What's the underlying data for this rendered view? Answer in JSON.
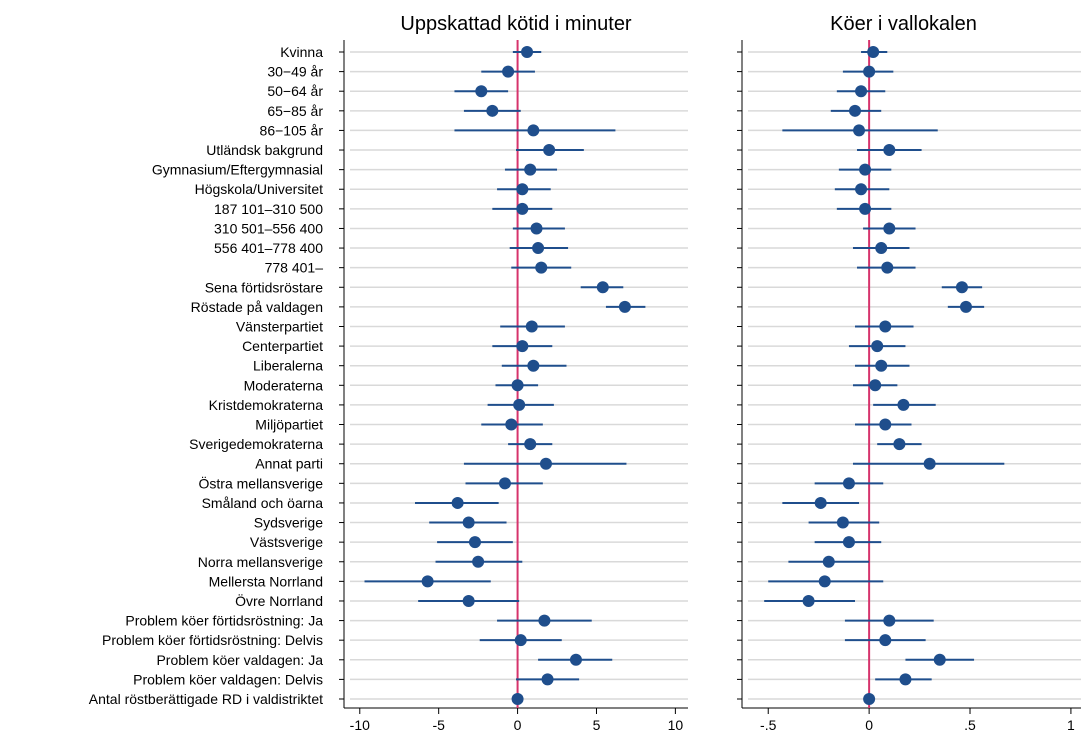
{
  "chart_data": {
    "type": "scatter",
    "subtype": "coefficient-plot",
    "marker_color": "#1f4e8c",
    "ci_color": "#1f4e8c",
    "zero_line_color": "#d6336c",
    "grid": true,
    "categories": [
      "Kvinna",
      "30−49 år",
      "50−64 år",
      "65−85 år",
      "86−105 år",
      "Utländsk bakgrund",
      "Gymnasium/Eftergymnasial",
      "Högskola/Universitet",
      "187 101–310 500",
      "310 501–556 400",
      "556 401–778 400",
      "778 401–",
      "Sena förtidsröstare",
      "Röstade på valdagen",
      "Vänsterpartiet",
      "Centerpartiet",
      "Liberalerna",
      "Moderaterna",
      "Kristdemokraterna",
      "Miljöpartiet",
      "Sverigedemokraterna",
      "Annat parti",
      "Östra mellansverige",
      "Småland och öarna",
      "Sydsverige",
      "Västsverige",
      "Norra mellansverige",
      "Mellersta Norrland",
      "Övre Norrland",
      "Problem köer förtidsröstning: Ja",
      "Problem köer förtidsröstning: Delvis",
      "Problem köer valdagen: Ja",
      "Problem köer valdagen: Delvis",
      "Antal röstberättigade RD i valdistriktet"
    ],
    "panels": [
      {
        "title": "Uppskattad kötid i minuter",
        "xlim": [
          -11,
          10.8
        ],
        "xticks": [
          -10,
          -5,
          0,
          5,
          10
        ],
        "xtick_labels": [
          "-10",
          "-5",
          "0",
          "5",
          "10"
        ],
        "estimates": [
          0.6,
          -0.6,
          -2.3,
          -1.6,
          1.0,
          2.0,
          0.8,
          0.3,
          0.3,
          1.2,
          1.3,
          1.5,
          5.4,
          6.8,
          0.9,
          0.3,
          1.0,
          0.0,
          0.1,
          -0.4,
          0.8,
          1.8,
          -0.8,
          -3.8,
          -3.1,
          -2.7,
          -2.5,
          -5.7,
          -3.1,
          1.7,
          0.2,
          3.7,
          1.9,
          0.0
        ],
        "ci_low": [
          -0.3,
          -2.3,
          -4.0,
          -3.4,
          -4.0,
          -0.1,
          -0.8,
          -1.3,
          -1.6,
          -0.3,
          -0.5,
          -0.4,
          4.0,
          5.6,
          -1.1,
          -1.6,
          -1.0,
          -1.4,
          -1.9,
          -2.3,
          -0.6,
          -3.4,
          -3.3,
          -6.5,
          -5.6,
          -5.1,
          -5.2,
          -9.7,
          -6.3,
          -1.3,
          -2.4,
          1.3,
          -0.1,
          -0.1
        ],
        "ci_high": [
          1.5,
          1.1,
          -0.6,
          0.2,
          6.2,
          4.2,
          2.5,
          2.1,
          2.2,
          3.0,
          3.2,
          3.4,
          6.7,
          8.1,
          3.0,
          2.2,
          3.1,
          1.3,
          2.3,
          1.6,
          2.2,
          6.9,
          1.6,
          -1.2,
          -0.7,
          -0.3,
          0.3,
          -1.7,
          0.1,
          4.7,
          2.8,
          6.0,
          3.9,
          0.1
        ]
      },
      {
        "title": "Köer i vallokalen",
        "xlim": [
          -0.63,
          1.05
        ],
        "xticks": [
          -0.5,
          0,
          0.5,
          1
        ],
        "xtick_labels": [
          "-.5",
          "0",
          ".5",
          "1"
        ],
        "estimates": [
          0.02,
          0.0,
          -0.04,
          -0.07,
          -0.05,
          0.1,
          -0.02,
          -0.04,
          -0.02,
          0.1,
          0.06,
          0.09,
          0.46,
          0.48,
          0.08,
          0.04,
          0.06,
          0.03,
          0.17,
          0.08,
          0.15,
          0.3,
          -0.1,
          -0.24,
          -0.13,
          -0.1,
          -0.2,
          -0.22,
          -0.3,
          0.1,
          0.08,
          0.35,
          0.18,
          0.0
        ],
        "ci_low": [
          -0.04,
          -0.13,
          -0.16,
          -0.19,
          -0.43,
          -0.06,
          -0.15,
          -0.17,
          -0.16,
          -0.03,
          -0.08,
          -0.06,
          0.36,
          0.39,
          -0.07,
          -0.1,
          -0.07,
          -0.08,
          0.02,
          -0.07,
          0.04,
          -0.08,
          -0.27,
          -0.43,
          -0.3,
          -0.27,
          -0.4,
          -0.5,
          -0.52,
          -0.12,
          -0.12,
          0.18,
          0.03,
          -0.01
        ],
        "ci_high": [
          0.09,
          0.12,
          0.08,
          0.06,
          0.34,
          0.26,
          0.11,
          0.1,
          0.11,
          0.23,
          0.2,
          0.23,
          0.56,
          0.57,
          0.22,
          0.18,
          0.2,
          0.14,
          0.33,
          0.21,
          0.26,
          0.67,
          0.07,
          -0.05,
          0.05,
          0.06,
          0.0,
          0.07,
          -0.07,
          0.32,
          0.28,
          0.52,
          0.31,
          0.01
        ]
      }
    ]
  }
}
